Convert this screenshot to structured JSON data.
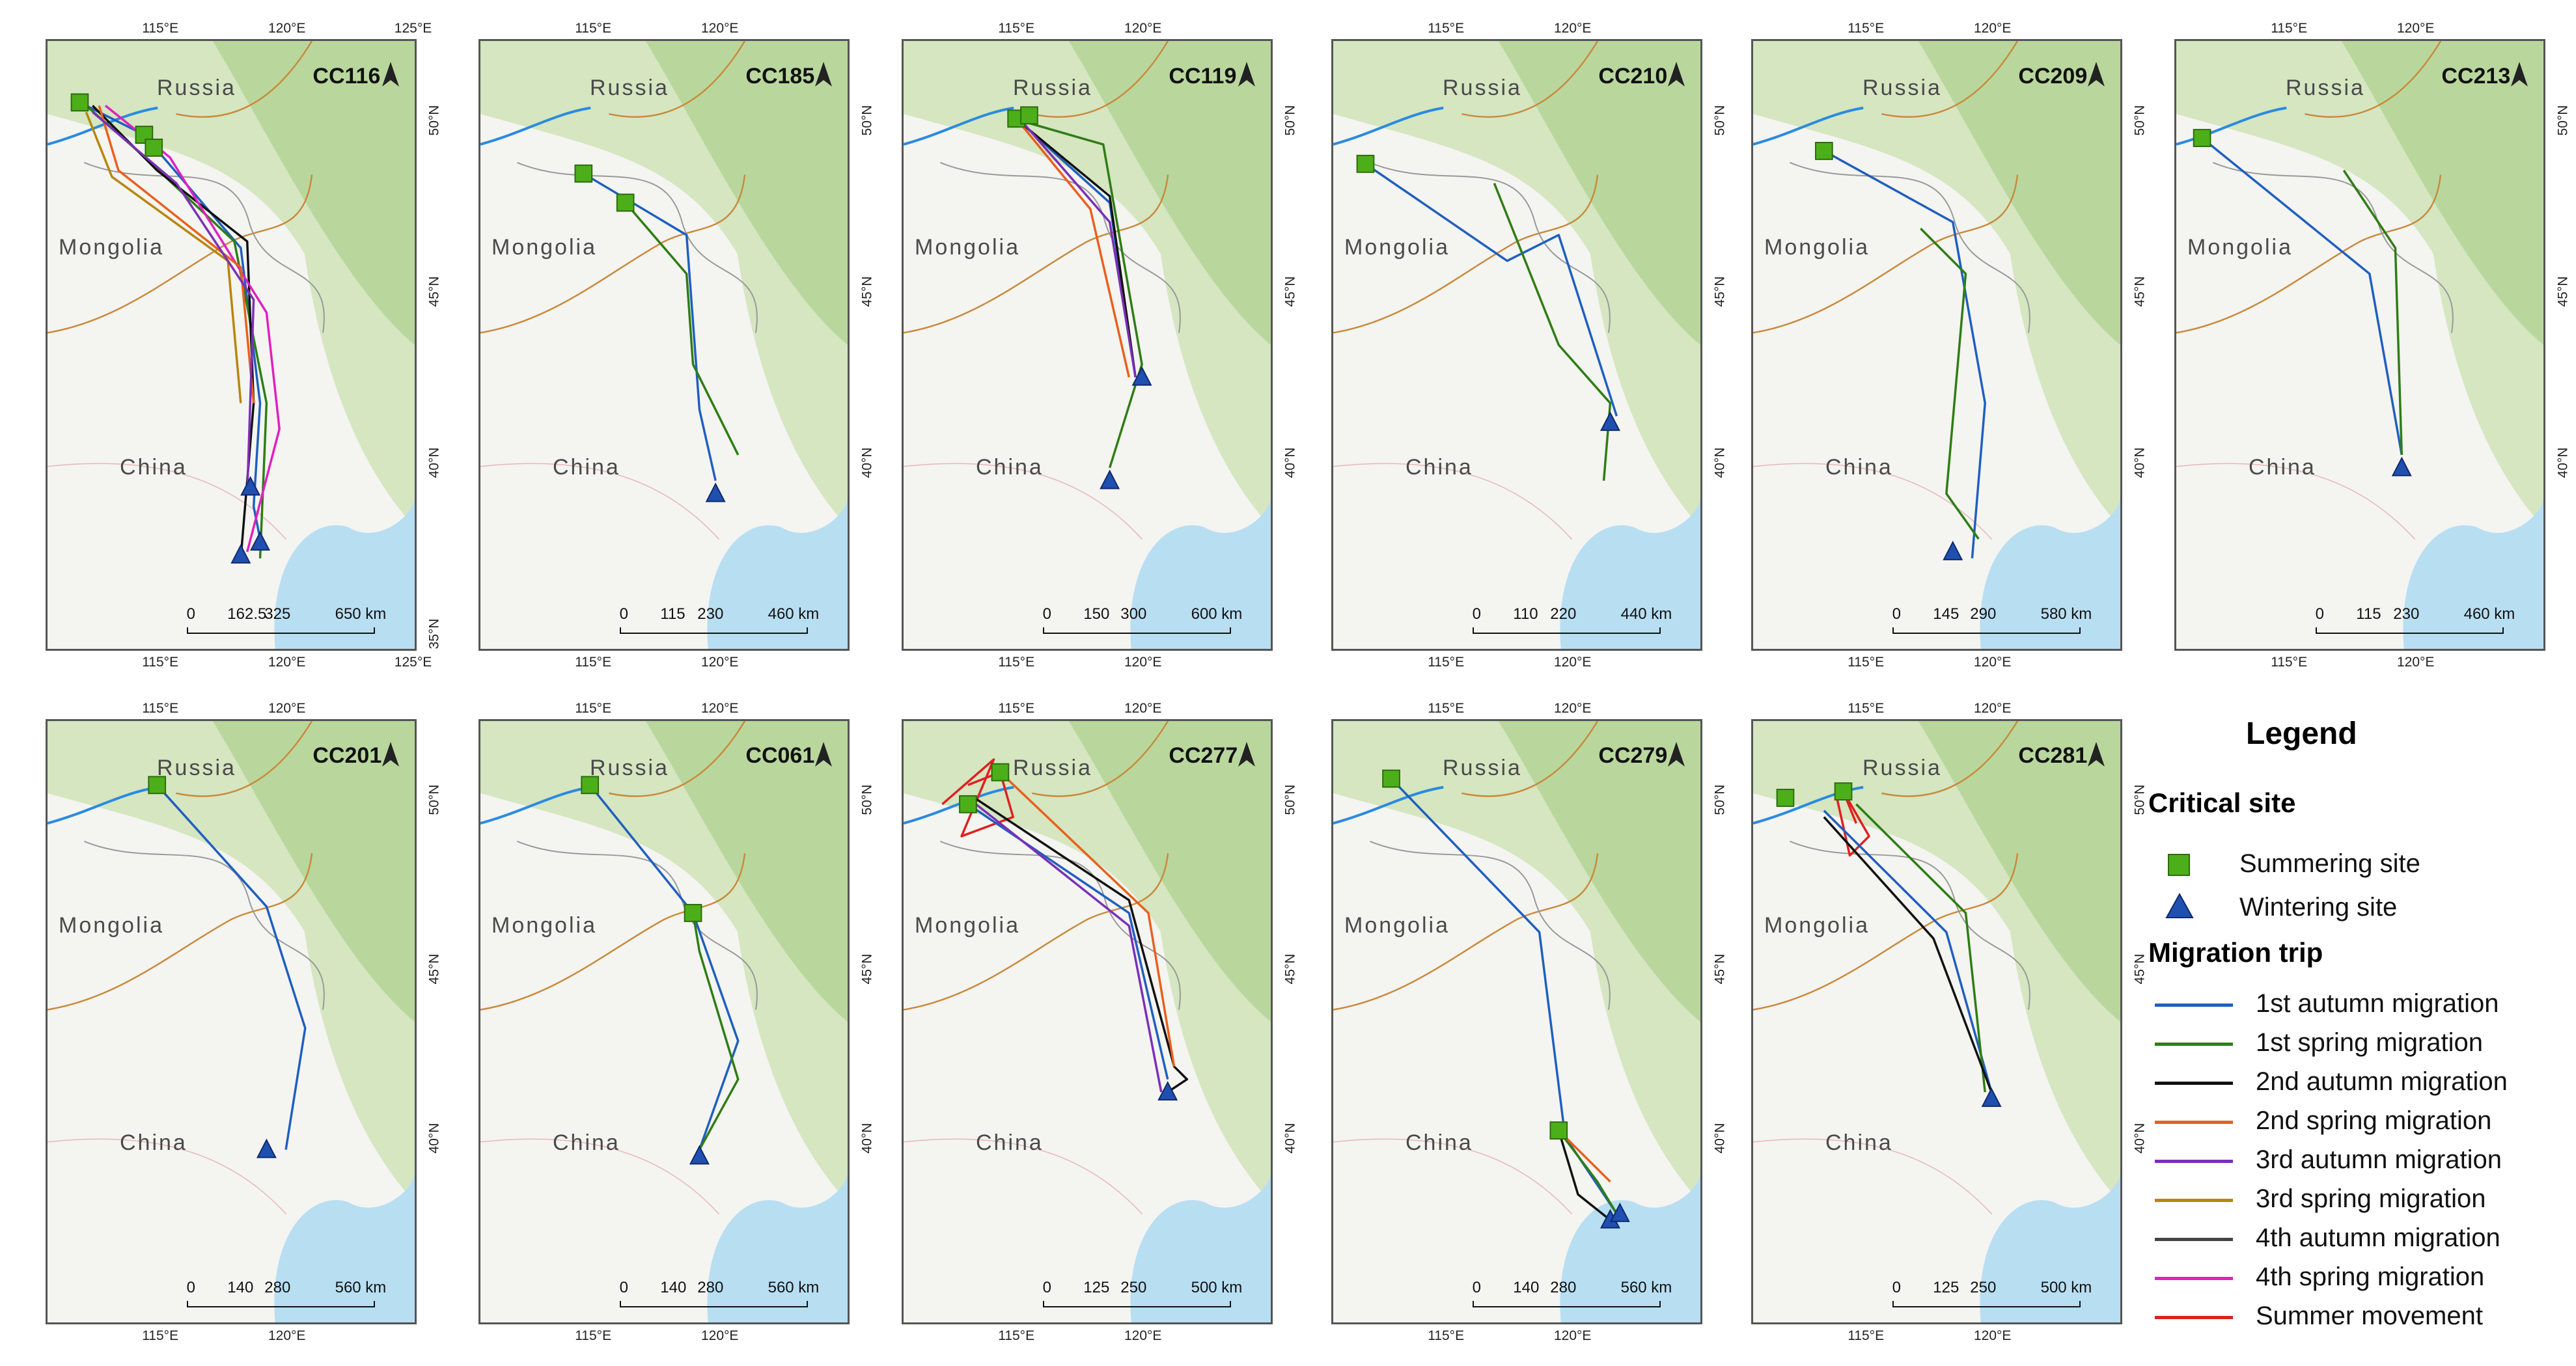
{
  "labels": {
    "russia": "Russia",
    "mongolia": "Mongolia",
    "china": "China"
  },
  "panels": [
    {
      "id": "CC116",
      "lon": [
        "115°E",
        "120°E",
        "125°E"
      ],
      "lat": [
        "50°N",
        "45°N",
        "40°N",
        "35°N"
      ],
      "scale": [
        "0",
        "162.5",
        "325",
        "650 km"
      ]
    },
    {
      "id": "CC185",
      "lon": [
        "115°E",
        "120°E"
      ],
      "lat": [
        "50°N",
        "45°N",
        "40°N"
      ],
      "scale": [
        "0",
        "115",
        "230",
        "460 km"
      ]
    },
    {
      "id": "CC119",
      "lon": [
        "115°E",
        "120°E"
      ],
      "lat": [
        "50°N",
        "45°N",
        "40°N"
      ],
      "scale": [
        "0",
        "150",
        "300",
        "600 km"
      ]
    },
    {
      "id": "CC210",
      "lon": [
        "115°E",
        "120°E"
      ],
      "lat": [
        "50°N",
        "45°N",
        "40°N"
      ],
      "scale": [
        "0",
        "110",
        "220",
        "440 km"
      ]
    },
    {
      "id": "CC209",
      "lon": [
        "115°E",
        "120°E"
      ],
      "lat": [
        "50°N",
        "45°N",
        "40°N"
      ],
      "scale": [
        "0",
        "145",
        "290",
        "580 km"
      ]
    },
    {
      "id": "CC213",
      "lon": [
        "115°E",
        "120°E"
      ],
      "lat": [
        "50°N",
        "45°N",
        "40°N"
      ],
      "scale": [
        "0",
        "115",
        "230",
        "460 km"
      ]
    },
    {
      "id": "CC201",
      "lon": [
        "115°E",
        "120°E"
      ],
      "lat": [
        "50°N",
        "45°N",
        "40°N"
      ],
      "scale": [
        "0",
        "140",
        "280",
        "560 km"
      ]
    },
    {
      "id": "CC061",
      "lon": [
        "115°E",
        "120°E"
      ],
      "lat": [
        "50°N",
        "45°N",
        "40°N"
      ],
      "scale": [
        "0",
        "140",
        "280",
        "560 km"
      ]
    },
    {
      "id": "CC277",
      "lon": [
        "115°E",
        "120°E"
      ],
      "lat": [
        "50°N",
        "45°N",
        "40°N"
      ],
      "scale": [
        "0",
        "125",
        "250",
        "500 km"
      ]
    },
    {
      "id": "CC279",
      "lon": [
        "115°E",
        "120°E"
      ],
      "lat": [
        "50°N",
        "45°N",
        "40°N"
      ],
      "scale": [
        "0",
        "140",
        "280",
        "560 km"
      ]
    },
    {
      "id": "CC281",
      "lon": [
        "115°E",
        "120°E"
      ],
      "lat": [
        "50°N",
        "45°N",
        "40°N"
      ],
      "scale": [
        "0",
        "125",
        "250",
        "500 km"
      ]
    }
  ],
  "legend": {
    "title": "Legend",
    "critical_site": "Critical site",
    "summering": "Summering site",
    "wintering": "Wintering site",
    "migration_trip": "Migration trip",
    "trips": [
      {
        "label": "1st autumn migration",
        "color": "#1f5fbf"
      },
      {
        "label": "1st spring migration",
        "color": "#2e7d14"
      },
      {
        "label": "2nd autumn migration",
        "color": "#111111"
      },
      {
        "label": "2nd spring migration",
        "color": "#e8601c"
      },
      {
        "label": "3rd autumn migration",
        "color": "#7b2fb8"
      },
      {
        "label": "3rd spring migration",
        "color": "#b8860b"
      },
      {
        "label": "4th autumn migration",
        "color": "#444444"
      },
      {
        "label": "4th spring migration",
        "color": "#e020c0"
      },
      {
        "label": "Summer movement",
        "color": "#e02020"
      }
    ]
  }
}
